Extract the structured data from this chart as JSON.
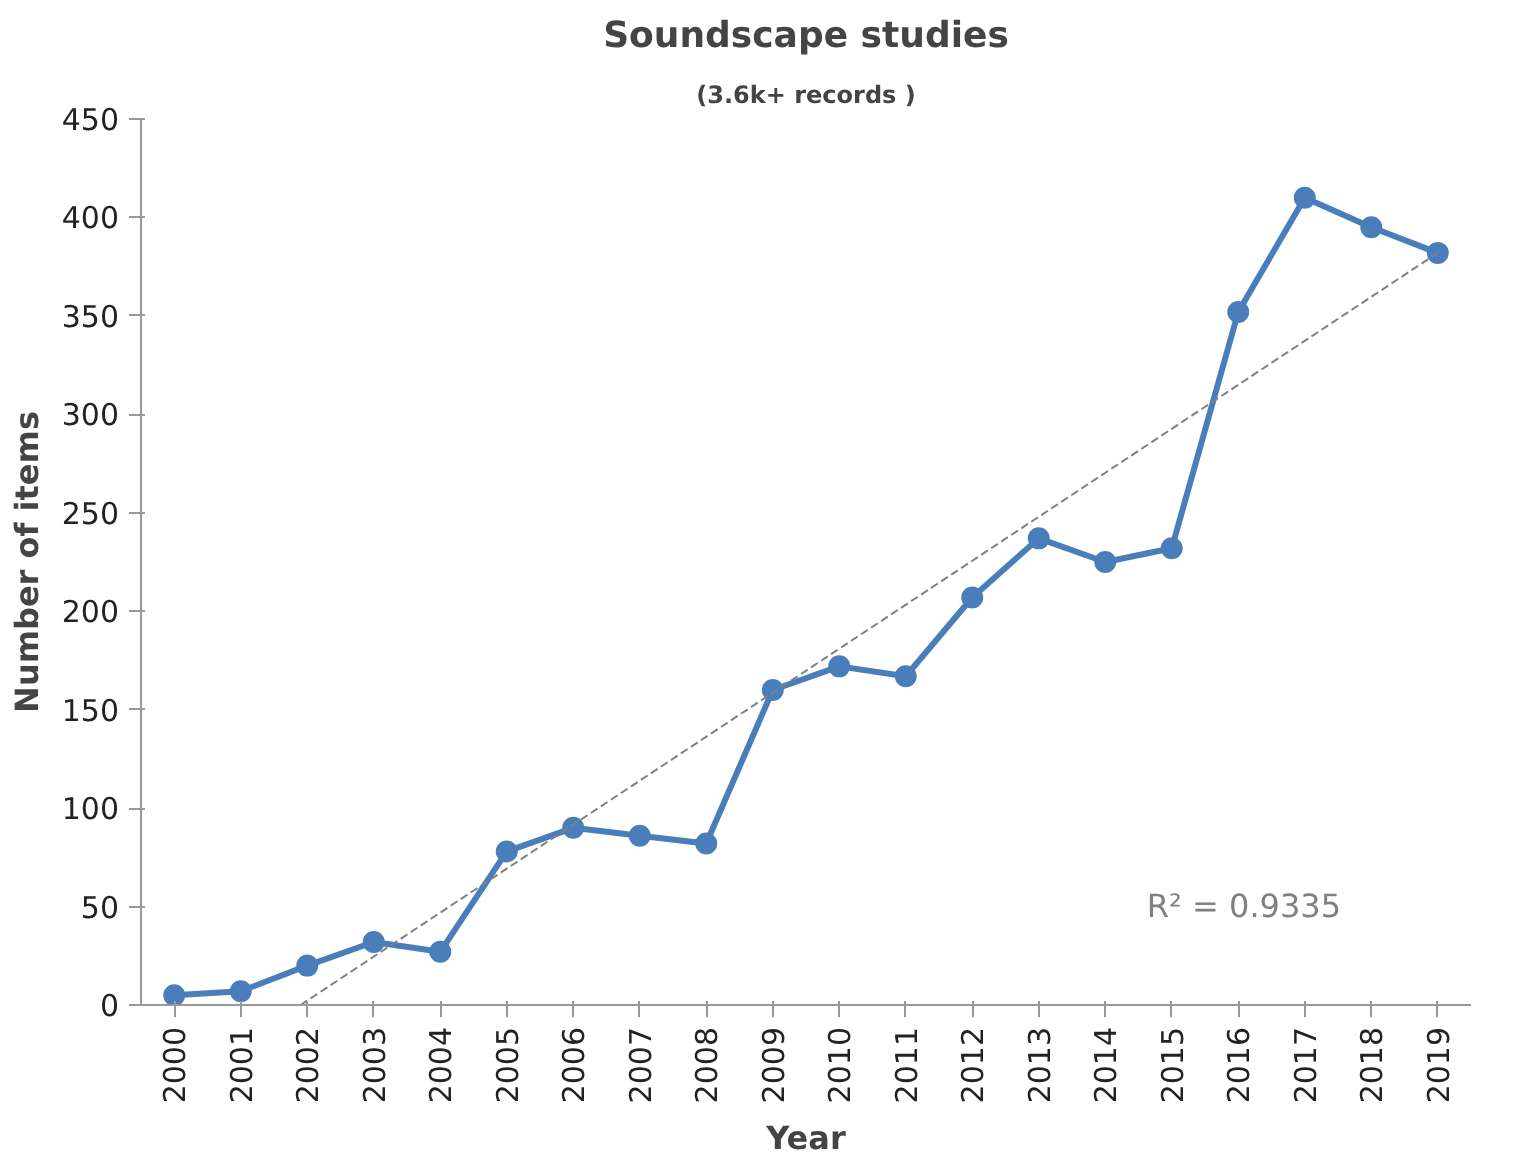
{
  "chart_data": {
    "type": "line",
    "title": "Soundscape studies",
    "subtitle": "(3.6k+ records )",
    "xlabel": "Year",
    "ylabel": "Number of items",
    "x": [
      2000,
      2001,
      2002,
      2003,
      2004,
      2005,
      2006,
      2007,
      2008,
      2009,
      2010,
      2011,
      2012,
      2013,
      2014,
      2015,
      2016,
      2017,
      2018,
      2019
    ],
    "xlim": [
      1999.5,
      2019.5
    ],
    "xticks": [
      {
        "value": 2000,
        "label": "2000"
      },
      {
        "value": 2001,
        "label": "2001"
      },
      {
        "value": 2002,
        "label": "2002"
      },
      {
        "value": 2003,
        "label": "2003"
      },
      {
        "value": 2004,
        "label": "2004"
      },
      {
        "value": 2005,
        "label": "2005"
      },
      {
        "value": 2006,
        "label": "2006"
      },
      {
        "value": 2007,
        "label": "2007"
      },
      {
        "value": 2008,
        "label": "2008"
      },
      {
        "value": 2009,
        "label": "2009"
      },
      {
        "value": 2010,
        "label": "2010"
      },
      {
        "value": 2011,
        "label": "2011"
      },
      {
        "value": 2012,
        "label": "2012"
      },
      {
        "value": 2013,
        "label": "2013"
      },
      {
        "value": 2014,
        "label": "2014"
      },
      {
        "value": 2015,
        "label": "2015"
      },
      {
        "value": 2016,
        "label": "2016"
      },
      {
        "value": 2017,
        "label": "2017"
      },
      {
        "value": 2018,
        "label": "2018"
      },
      {
        "value": 2019,
        "label": "2019"
      }
    ],
    "ylim": [
      0,
      450
    ],
    "yticks": [
      0,
      50,
      100,
      150,
      200,
      250,
      300,
      350,
      400,
      450
    ],
    "series": [
      {
        "color": "#4a7ebb",
        "marker": "circle",
        "line_style": "solid",
        "values": [
          5,
          7,
          20,
          32,
          27,
          78,
          90,
          86,
          82,
          160,
          172,
          167,
          207,
          237,
          225,
          232,
          352,
          410,
          395,
          382
        ]
      },
      {
        "type": "line",
        "color": "#808080",
        "marker": "none",
        "line_style": "dashed",
        "x": [
          2001.9,
          2019
        ],
        "values": [
          0,
          382
        ]
      }
    ],
    "annotations": [
      "R² = 0.9335"
    ],
    "grid": false
  }
}
